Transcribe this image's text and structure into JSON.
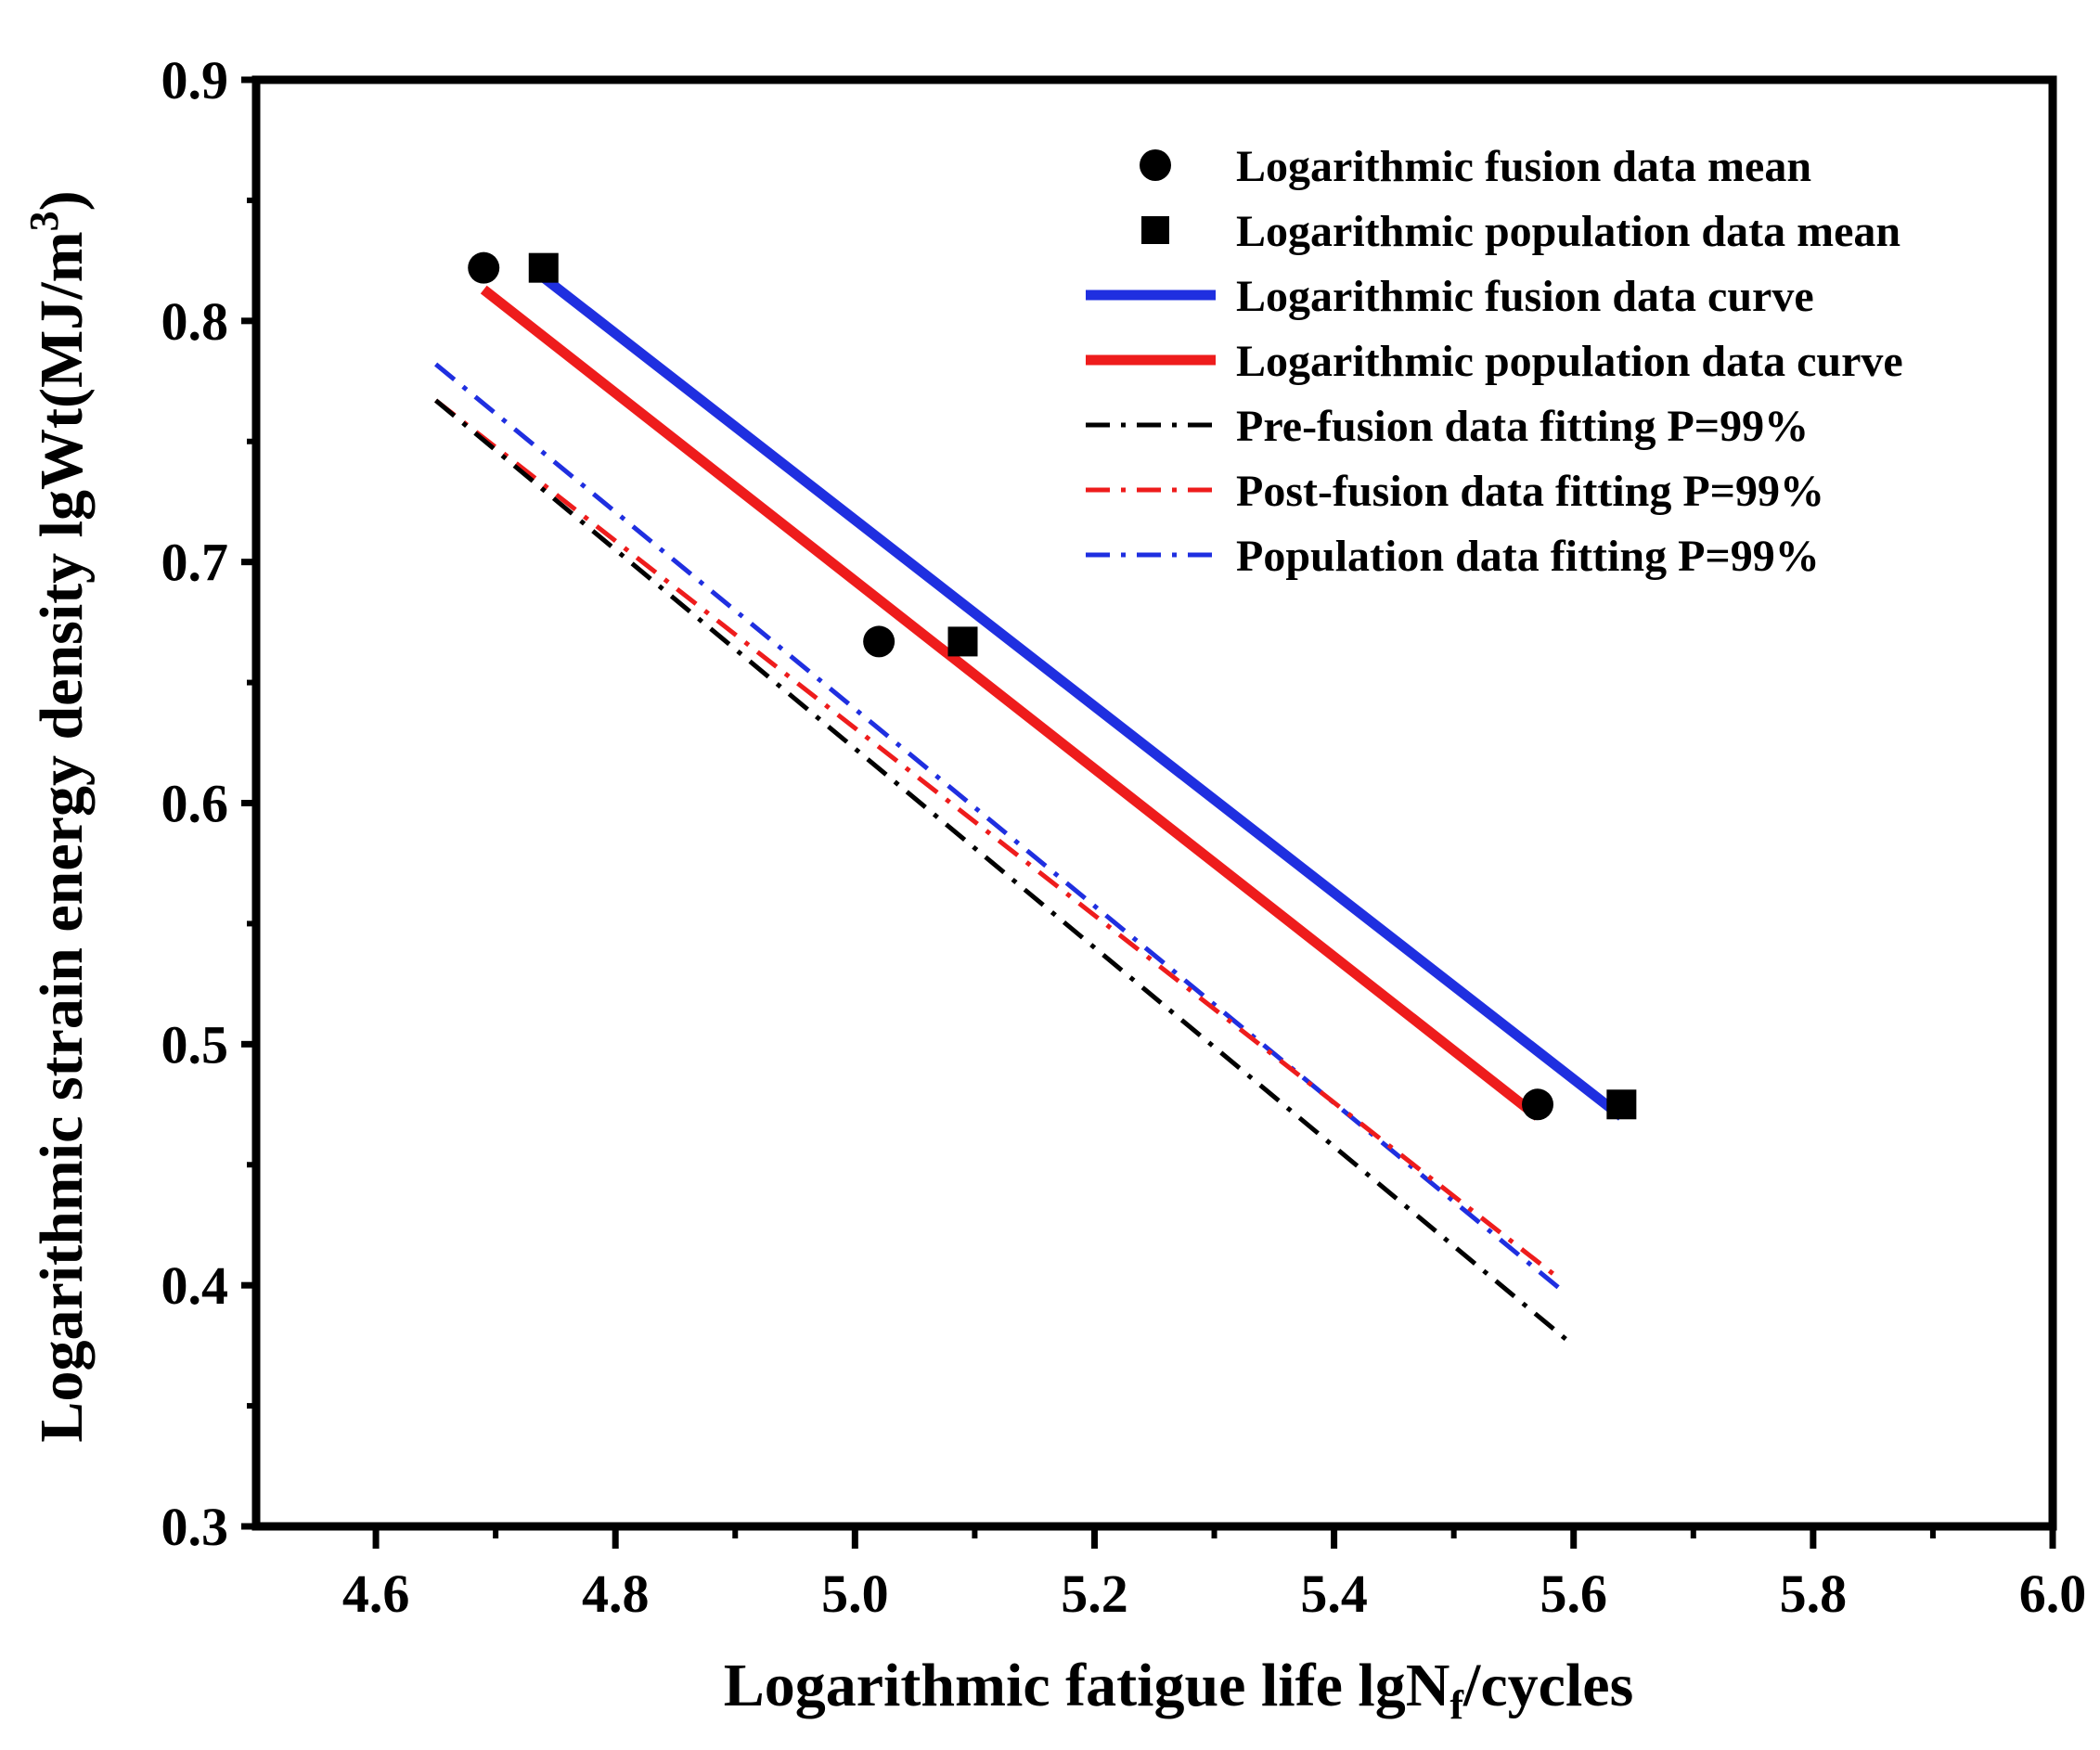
{
  "chart_data": {
    "type": "scatter",
    "title": "",
    "xlabel": {
      "main": "Logarithmic fatigue life  lgN",
      "sub": "f",
      "tail": "/cycles"
    },
    "ylabel": {
      "main": "Logarithmic strain energy density  lgWt(MJ/m",
      "sup": "3",
      "tail": ")"
    },
    "xlim": [
      4.5,
      6.0
    ],
    "ylim": [
      0.3,
      0.9
    ],
    "xticks": [
      4.6,
      4.8,
      5.0,
      5.2,
      5.4,
      5.6,
      5.8,
      6.0
    ],
    "xtick_labels": [
      "4.6",
      "4.8",
      "5.0",
      "5.2",
      "5.4",
      "5.6",
      "5.8",
      "6.0"
    ],
    "yticks": [
      0.3,
      0.4,
      0.5,
      0.6,
      0.7,
      0.8,
      0.9
    ],
    "ytick_labels": [
      "0.3",
      "0.4",
      "0.5",
      "0.6",
      "0.7",
      "0.8",
      "0.9"
    ],
    "grid": false,
    "legend_position": "top-right",
    "series": [
      {
        "name": "Logarithmic fusion data mean",
        "kind": "scatter",
        "marker": "circle",
        "color": "#000000",
        "x": [
          4.69,
          5.02,
          5.57
        ],
        "y": [
          0.822,
          0.667,
          0.475
        ]
      },
      {
        "name": "Logarithmic population data mean",
        "kind": "scatter",
        "marker": "square",
        "color": "#000000",
        "x": [
          4.74,
          5.09,
          5.64
        ],
        "y": [
          0.822,
          0.667,
          0.475
        ]
      },
      {
        "name": "Logarithmic fusion data curve",
        "kind": "line",
        "dash": "solid",
        "color": "#1f2fe0",
        "x": [
          4.74,
          5.64
        ],
        "y": [
          0.818,
          0.47
        ]
      },
      {
        "name": "Logarithmic population data curve",
        "kind": "line",
        "dash": "solid",
        "color": "#ee1c1c",
        "x": [
          4.69,
          5.57
        ],
        "y": [
          0.813,
          0.47
        ]
      },
      {
        "name": "Pre-fusion data fitting P=99%",
        "kind": "line",
        "dash": "dashdot",
        "color": "#000000",
        "x": [
          4.65,
          5.6
        ],
        "y": [
          0.767,
          0.375
        ]
      },
      {
        "name": "Post-fusion data fitting P=99%",
        "kind": "line",
        "dash": "dashdot",
        "color": "#ee1c1c",
        "x": [
          4.65,
          5.59
        ],
        "y": [
          0.767,
          0.402
        ]
      },
      {
        "name": "Population data fitting P=99%",
        "kind": "line",
        "dash": "dashdot",
        "color": "#1f2fe0",
        "x": [
          4.65,
          5.59
        ],
        "y": [
          0.782,
          0.398
        ]
      }
    ]
  }
}
